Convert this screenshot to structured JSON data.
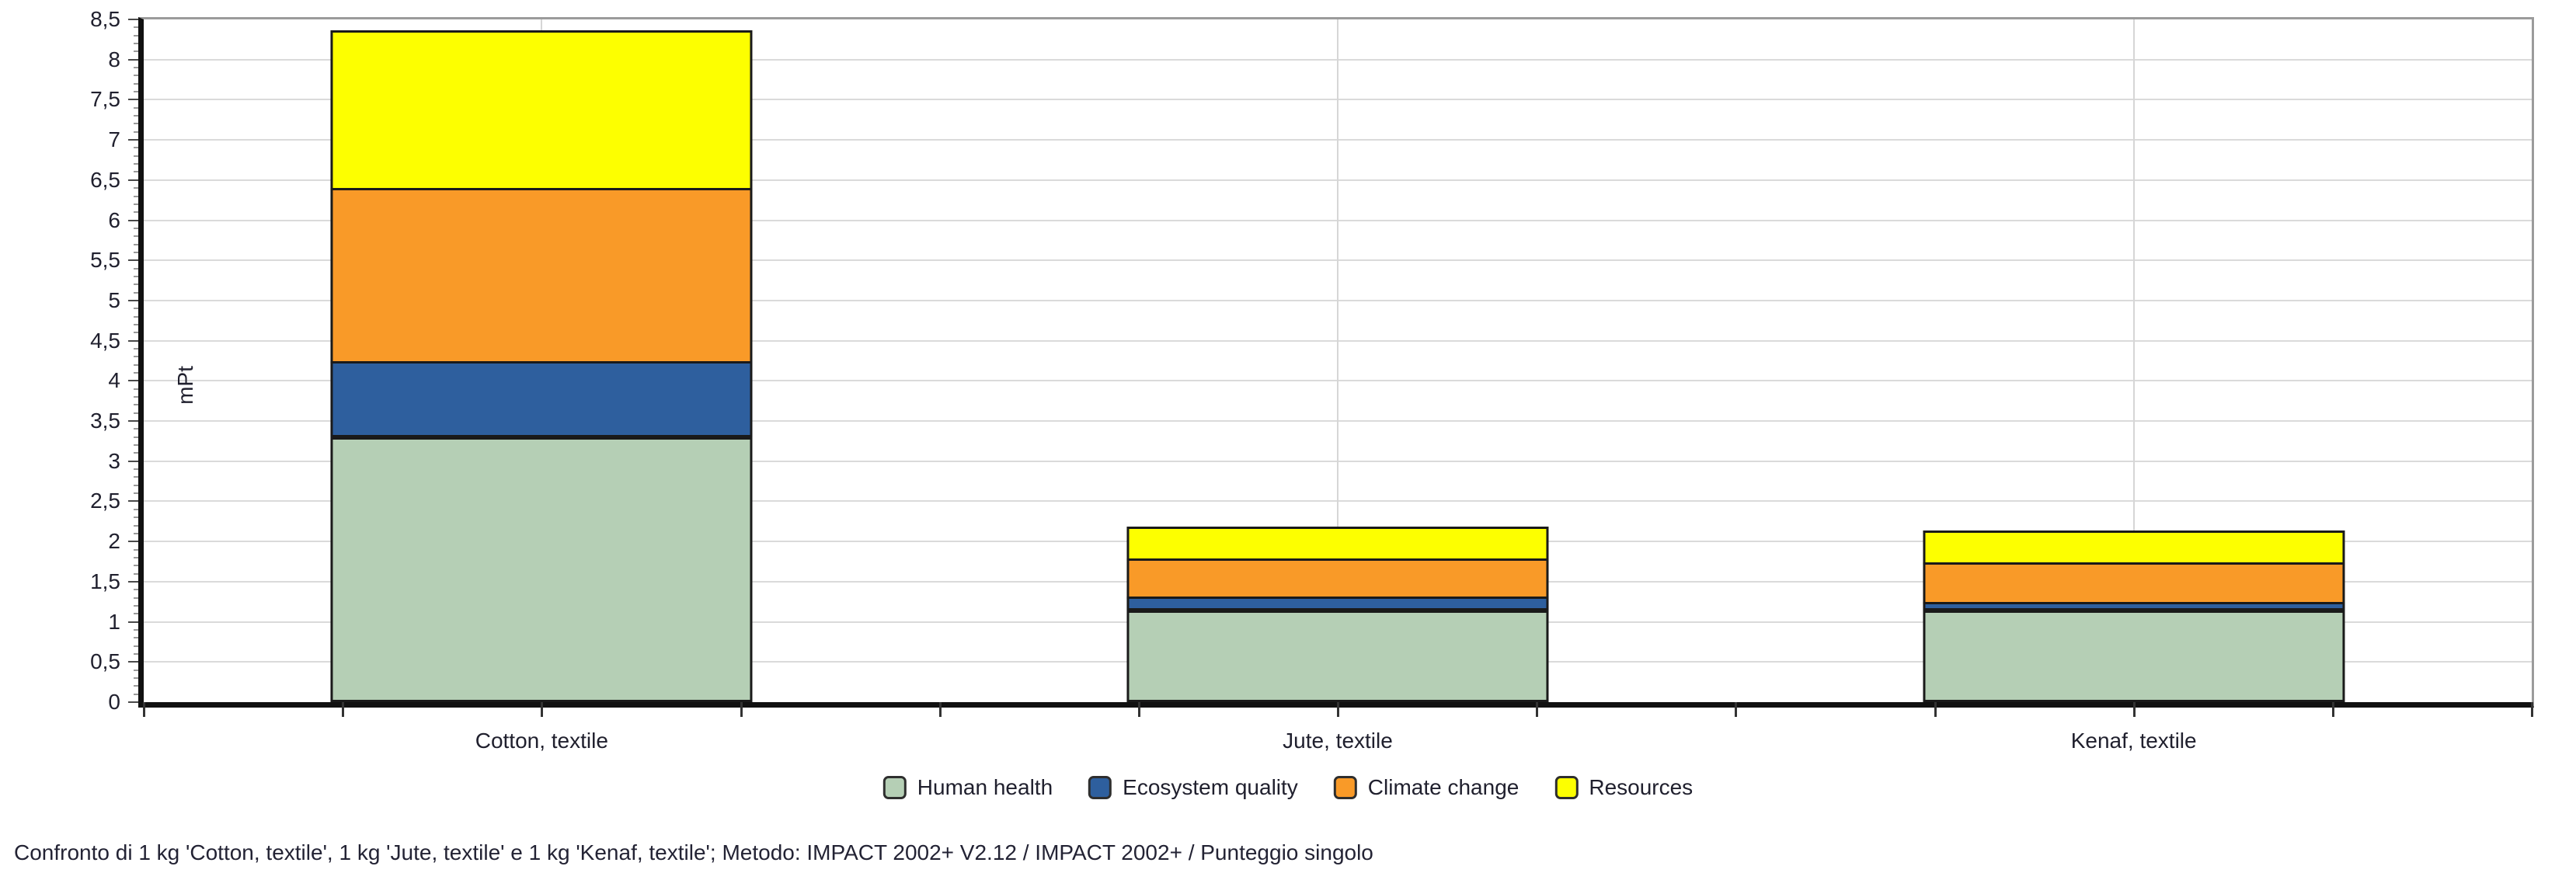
{
  "caption": "Confronto di 1 kg 'Cotton, textile', 1 kg 'Jute, textile' e 1 kg 'Kenaf, textile';  Metodo: IMPACT 2002+ V2.12 / IMPACT 2002+ / Punteggio singolo",
  "chart_data": {
    "type": "bar",
    "stacked": true,
    "title": "",
    "xlabel": "",
    "ylabel": "mPt",
    "ylim": [
      0,
      8.5
    ],
    "ytick_step": 0.5,
    "ytick_labels": [
      "0",
      "0,5",
      "1",
      "1,5",
      "2",
      "2,5",
      "3",
      "3,5",
      "4",
      "4,5",
      "5",
      "5,5",
      "6",
      "6,5",
      "7",
      "7,5",
      "8",
      "8,5"
    ],
    "grid": true,
    "legend_position": "bottom",
    "categories": [
      "Cotton, textile",
      "Jute, textile",
      "Kenaf, textile"
    ],
    "series": [
      {
        "name": "Human health",
        "color": "#b5cfb5",
        "values": [
          3.3,
          1.14,
          1.14
        ]
      },
      {
        "name": "Ecosystem quality",
        "color": "#2e5f9e",
        "values": [
          0.95,
          0.18,
          0.11
        ]
      },
      {
        "name": "Climate change",
        "color": "#f99a28",
        "values": [
          2.18,
          0.5,
          0.52
        ]
      },
      {
        "name": "Resources",
        "color": "#fdff00",
        "values": [
          1.99,
          0.42,
          0.43
        ]
      }
    ],
    "totals": [
      8.42,
      2.24,
      2.2
    ],
    "colors": {
      "grid": "#dadada",
      "axis": "#111111",
      "frame": "#9b9b9b",
      "segment_border": "#1a1a1a",
      "text": "#20202e"
    }
  }
}
